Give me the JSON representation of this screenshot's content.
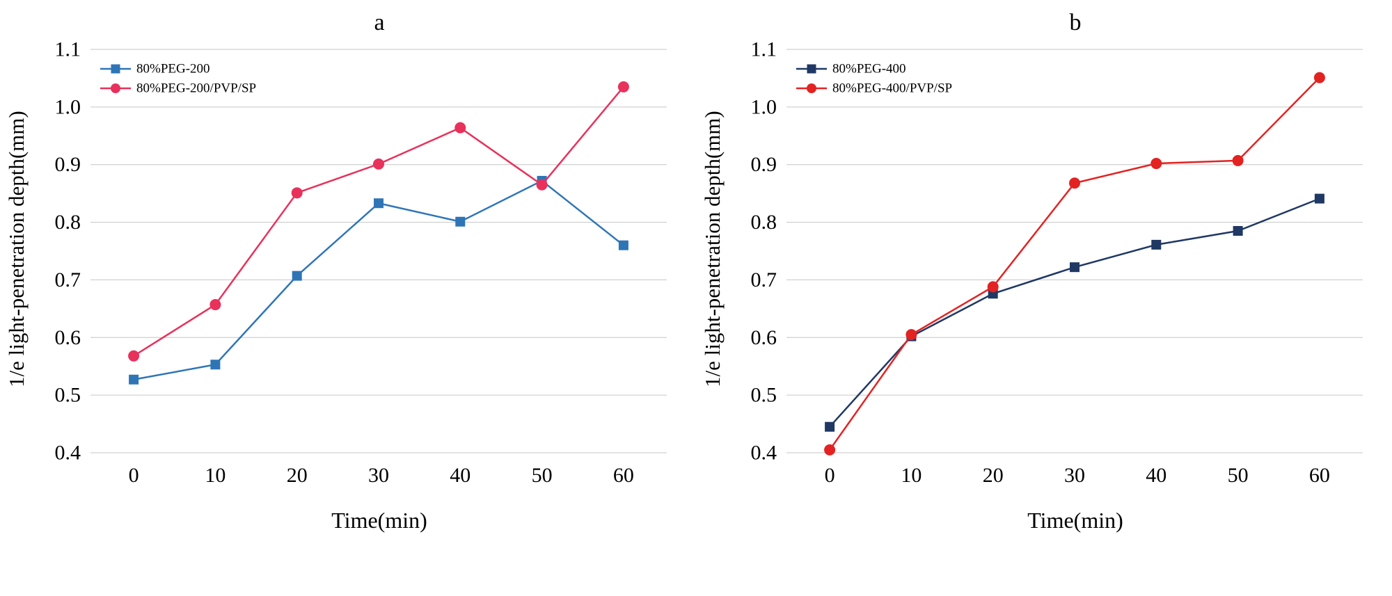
{
  "figure": {
    "background": "#ffffff",
    "grid_color": "#c6c6c6"
  },
  "chart_data": [
    {
      "type": "line",
      "title": "a",
      "xlabel": "Time(min)",
      "ylabel": "1/e light-penetration depth(mm)",
      "x": [
        0,
        10,
        20,
        30,
        40,
        50,
        60
      ],
      "xticks": [
        "0",
        "10",
        "20",
        "30",
        "40",
        "50",
        "60"
      ],
      "yticks": [
        "0.4",
        "0.5",
        "0.6",
        "0.7",
        "0.8",
        "0.9",
        "1.0",
        "1.1"
      ],
      "ylim": [
        0.4,
        1.1
      ],
      "grid": "horizontal",
      "grid_color": "#c6c6c6",
      "legend_position": "top-left",
      "series": [
        {
          "name": "80%PEG-200",
          "color": "#2e75b6",
          "marker": "square",
          "values": [
            0.527,
            0.553,
            0.707,
            0.833,
            0.801,
            0.872,
            0.76
          ]
        },
        {
          "name": "80%PEG-200/PVP/SP",
          "color": "#e8315b",
          "marker": "circle",
          "values": [
            0.568,
            0.657,
            0.851,
            0.901,
            0.964,
            0.865,
            1.035
          ]
        }
      ]
    },
    {
      "type": "line",
      "title": "b",
      "xlabel": "Time(min)",
      "ylabel": "1/e light-penetration depth(mm)",
      "x": [
        0,
        10,
        20,
        30,
        40,
        50,
        60
      ],
      "xticks": [
        "0",
        "10",
        "20",
        "30",
        "40",
        "50",
        "60"
      ],
      "yticks": [
        "0.4",
        "0.5",
        "0.6",
        "0.7",
        "0.8",
        "0.9",
        "1.0",
        "1.1"
      ],
      "ylim": [
        0.4,
        1.1
      ],
      "grid": "horizontal",
      "grid_color": "#c6c6c6",
      "legend_position": "top-left",
      "series": [
        {
          "name": "80%PEG-400",
          "color": "#1f3864",
          "marker": "square",
          "values": [
            0.445,
            0.602,
            0.676,
            0.722,
            0.761,
            0.785,
            0.841
          ]
        },
        {
          "name": "80%PEG-400/PVP/SP",
          "color": "#e32222",
          "marker": "circle",
          "values": [
            0.405,
            0.605,
            0.688,
            0.868,
            0.902,
            0.907,
            1.051
          ]
        }
      ]
    }
  ]
}
